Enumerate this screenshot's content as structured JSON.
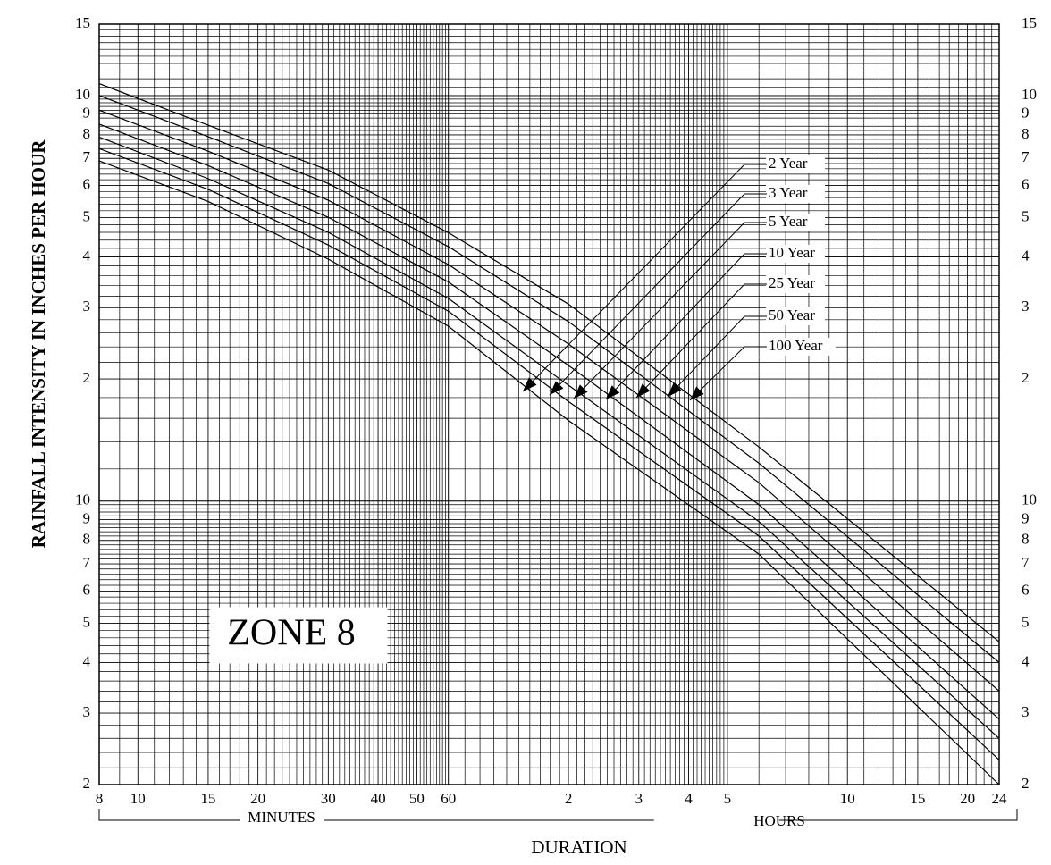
{
  "chart_data": {
    "type": "line",
    "annotation": "ZONE 8",
    "ylabel": "RAINFALL INTENSITY IN INCHES PER HOUR",
    "xlabel": "DURATION",
    "xgroups": [
      "MINUTES",
      "HOURS"
    ],
    "log_x": true,
    "log_y": true,
    "grid": true,
    "xlim": [
      8,
      1440
    ],
    "ylim": [
      0.2,
      15
    ],
    "xticks": [
      8,
      10,
      15,
      20,
      30,
      40,
      50,
      60,
      {
        "value": 120,
        "label": "2"
      },
      {
        "value": 180,
        "label": "3"
      },
      {
        "value": 240,
        "label": "4"
      },
      {
        "value": 300,
        "label": "5"
      },
      {
        "value": 600,
        "label": "10"
      },
      {
        "value": 900,
        "label": "15"
      },
      {
        "value": 1200,
        "label": "20"
      },
      {
        "value": 1440,
        "label": "24"
      }
    ],
    "yticks": [
      15,
      10,
      9,
      8,
      7,
      6,
      5,
      4,
      3,
      2,
      {
        "value": 1,
        "label": "10"
      },
      {
        "value": 0.9,
        "label": "9"
      },
      {
        "value": 0.8,
        "label": "8"
      },
      {
        "value": 0.7,
        "label": "7"
      },
      {
        "value": 0.6,
        "label": "6"
      },
      {
        "value": 0.5,
        "label": "5"
      },
      {
        "value": 0.4,
        "label": "4"
      },
      {
        "value": 0.3,
        "label": "3"
      },
      {
        "value": 0.2,
        "label": "2"
      }
    ],
    "xgrid": [
      {
        "from": 8,
        "to": 60,
        "step": 1
      },
      {
        "from": 60,
        "to": 300,
        "step": 6
      },
      {
        "from": 300,
        "to": 1440,
        "step": 60
      }
    ],
    "ygrid": [
      {
        "from": 0.2,
        "to": 1,
        "step": 0.02
      },
      {
        "from": 1,
        "to": 10,
        "step": 0.2
      },
      {
        "from": 10,
        "to": 15,
        "step": 0.5
      }
    ],
    "x": [
      8,
      15,
      30,
      60,
      120,
      360,
      1440
    ],
    "series": [
      {
        "name": "2 Year",
        "color": "#000000",
        "values": [
          6.9,
          5.48,
          3.95,
          2.7,
          1.58,
          0.74,
          0.2
        ]
      },
      {
        "name": "3 Year",
        "color": "#000000",
        "values": [
          7.4,
          5.87,
          4.28,
          2.94,
          1.76,
          0.82,
          0.23
        ]
      },
      {
        "name": "5 Year",
        "color": "#000000",
        "values": [
          7.9,
          6.24,
          4.6,
          3.16,
          1.93,
          0.89,
          0.26
        ]
      },
      {
        "name": "10 Year",
        "color": "#000000",
        "values": [
          8.5,
          6.72,
          5.01,
          3.47,
          2.16,
          0.98,
          0.29
        ]
      },
      {
        "name": "25 Year",
        "color": "#000000",
        "values": [
          9.2,
          7.29,
          5.52,
          3.83,
          2.44,
          1.11,
          0.34
        ]
      },
      {
        "name": "50 Year",
        "color": "#000000",
        "values": [
          10.0,
          7.92,
          6.07,
          4.24,
          2.77,
          1.24,
          0.4
        ]
      },
      {
        "name": "100 Year",
        "color": "#000000",
        "values": [
          10.7,
          8.45,
          6.55,
          4.59,
          3.06,
          1.36,
          0.45
        ]
      }
    ]
  }
}
